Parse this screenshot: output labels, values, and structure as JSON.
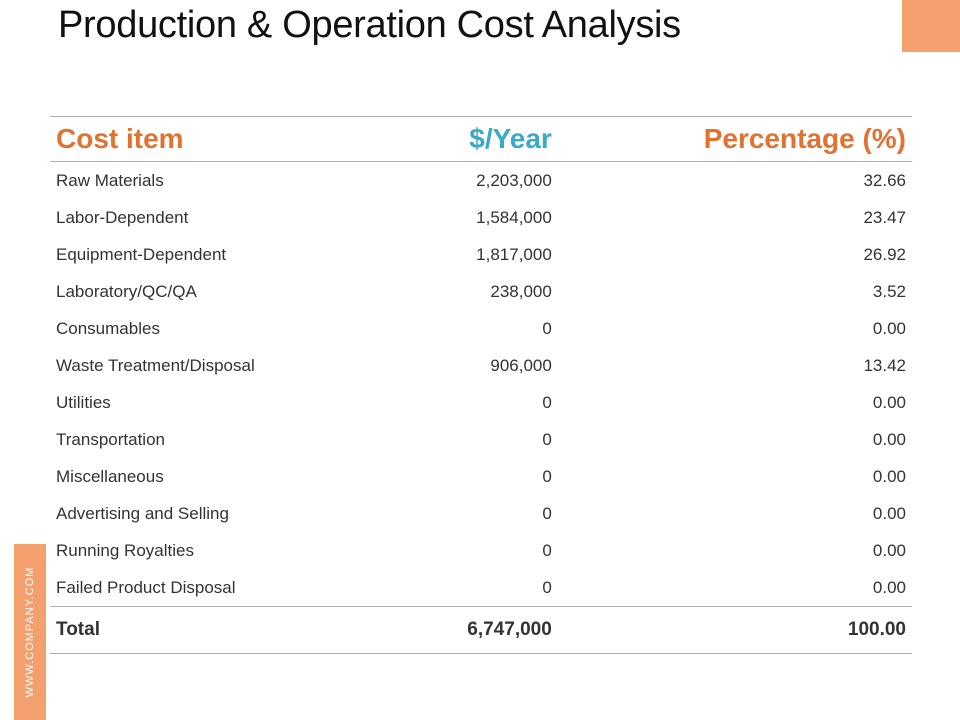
{
  "slide": {
    "title": "Production & Operation Cost Analysis",
    "side_text": "WWW.COMPANY.COM"
  },
  "colors": {
    "accent_orange": "#e2722f",
    "accent_blue": "#3aaac7",
    "block_orange": "#f4a06e"
  },
  "table": {
    "headers": [
      "Cost item",
      "$/Year",
      "Percentage (%)"
    ],
    "rows": [
      [
        "Raw Materials",
        "2,203,000",
        "32.66"
      ],
      [
        "Labor-Dependent",
        "1,584,000",
        "23.47"
      ],
      [
        "Equipment-Dependent",
        "1,817,000",
        "26.92"
      ],
      [
        "Laboratory/QC/QA",
        "238,000",
        "3.52"
      ],
      [
        "Consumables",
        "0",
        "0.00"
      ],
      [
        "Waste Treatment/Disposal",
        "906,000",
        "13.42"
      ],
      [
        "Utilities",
        "0",
        "0.00"
      ],
      [
        "Transportation",
        "0",
        "0.00"
      ],
      [
        "Miscellaneous",
        "0",
        "0.00"
      ],
      [
        "Advertising and Selling",
        "0",
        "0.00"
      ],
      [
        "Running Royalties",
        "0",
        "0.00"
      ],
      [
        "Failed Product Disposal",
        "0",
        "0.00"
      ]
    ],
    "total": [
      "Total",
      "6,747,000",
      "100.00"
    ]
  }
}
